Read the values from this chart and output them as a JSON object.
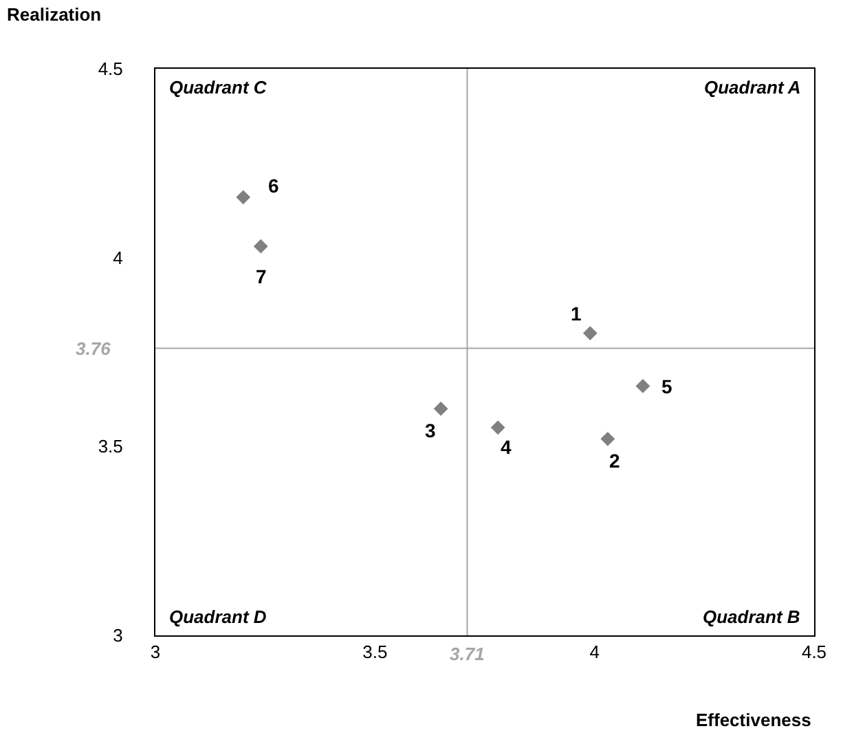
{
  "chart_data": {
    "type": "scatter",
    "xlabel": "Effectiveness",
    "ylabel": "Realization",
    "x": [
      3.99,
      4.03,
      3.65,
      3.78,
      4.11,
      3.2,
      3.24
    ],
    "values": [
      3.8,
      3.52,
      3.6,
      3.55,
      3.66,
      4.16,
      4.03
    ],
    "color": "#808080",
    "marker": "diamond",
    "xlim": [
      3,
      4.5
    ],
    "xticks": [
      3,
      3.5,
      4,
      4.5
    ],
    "ylim": [
      3,
      4.5
    ],
    "yticks": [
      3,
      3.5,
      4,
      4.5
    ],
    "ref_lines": [
      {
        "axis": "x",
        "value": 3.71,
        "label": "3.71",
        "color": "#a6a6a6"
      },
      {
        "axis": "y",
        "value": 3.76,
        "label": "3.76",
        "color": "#a6a6a6"
      }
    ],
    "annotations": [
      {
        "text": "1",
        "x": 3.99,
        "y": 3.8
      },
      {
        "text": "2",
        "x": 4.03,
        "y": 3.52
      },
      {
        "text": "3",
        "x": 3.65,
        "y": 3.6
      },
      {
        "text": "4",
        "x": 3.78,
        "y": 3.55
      },
      {
        "text": "5",
        "x": 4.11,
        "y": 3.66
      },
      {
        "text": "6",
        "x": 3.2,
        "y": 4.16
      },
      {
        "text": "7",
        "x": 3.24,
        "y": 4.03
      },
      "Quadrant C",
      "Quadrant A",
      "Quadrant D",
      "Quadrant B"
    ]
  }
}
